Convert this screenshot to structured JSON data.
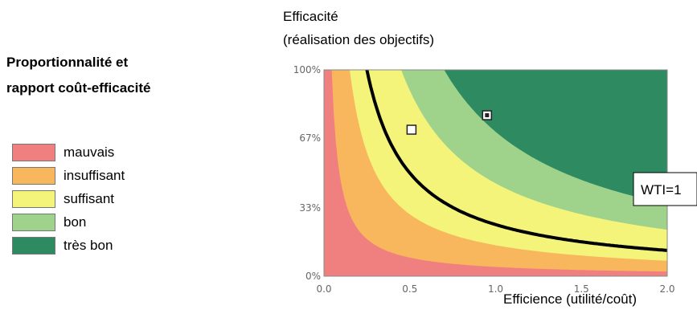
{
  "title_lines": [
    "Proportionnalité et",
    "rapport coût-efficacité"
  ],
  "ylabel_lines": [
    "Efficacité",
    "(réalisation des objectifs)"
  ],
  "xlabel": "Efficience (utilité/coût)",
  "legend": [
    {
      "label": "mauvais",
      "color": "#f08080"
    },
    {
      "label": "insuffisant",
      "color": "#f8b75c"
    },
    {
      "label": "suffisant",
      "color": "#f4f47a"
    },
    {
      "label": "bon",
      "color": "#9fd38c"
    },
    {
      "label": "très bon",
      "color": "#2e8a60"
    }
  ],
  "chart_data": {
    "type": "area",
    "x_axis": {
      "range": [
        0,
        2
      ],
      "ticks": [
        "0.0",
        "0.5",
        "1.0",
        "1.5",
        "2.0"
      ]
    },
    "y_axis": {
      "range": [
        0,
        100
      ],
      "unit": "%",
      "ticks": [
        "0%",
        "33%",
        "67%",
        "100%"
      ]
    },
    "zones": [
      {
        "label": "mauvais",
        "upper_boundary_k": 0.045
      },
      {
        "label": "insuffisant",
        "upper_boundary_k": 0.15
      },
      {
        "label": "suffisant",
        "upper_boundary_k": 0.45
      },
      {
        "label": "bon",
        "upper_boundary_k": 0.7
      },
      {
        "label": "très bon",
        "upper_boundary_k": null
      }
    ],
    "curve": {
      "label": "WTI=1",
      "k": 0.25
    },
    "points": [
      {
        "x": 0.51,
        "y": 71,
        "style": "open-square"
      },
      {
        "x": 0.95,
        "y": 78,
        "style": "filled-square"
      }
    ]
  }
}
